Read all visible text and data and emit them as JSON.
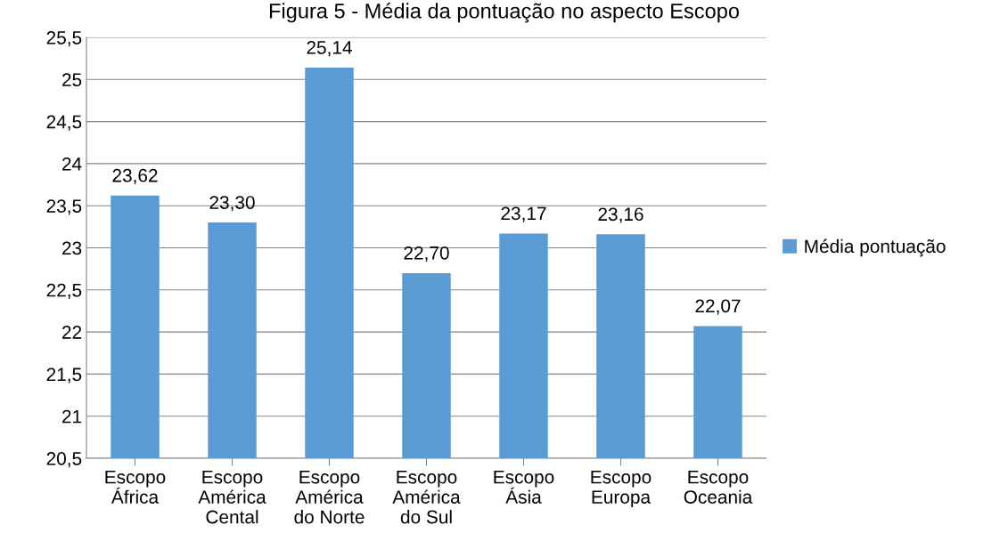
{
  "chart_data": {
    "type": "bar",
    "title": "Figura 5 - Média da pontuação no aspecto Escopo",
    "categories": [
      "Escopo\nÁfrica",
      "Escopo\nAmérica\nCental",
      "Escopo\nAmérica\ndo Norte",
      "Escopo\nAmérica\ndo Sul",
      "Escopo\nÁsia",
      "Escopo\nEuropa",
      "Escopo\nOceania"
    ],
    "series": [
      {
        "name": "Média pontuação",
        "color": "#5b9bd5",
        "values": [
          23.62,
          23.3,
          25.14,
          22.7,
          23.17,
          23.16,
          22.07
        ],
        "value_labels": [
          "23,62",
          "23,30",
          "25,14",
          "22,70",
          "23,17",
          "23,16",
          "22,07"
        ]
      }
    ],
    "ylim": [
      20.5,
      25.5
    ],
    "yticks": [
      {
        "value": 20.5,
        "label": "20,5"
      },
      {
        "value": 21,
        "label": "21"
      },
      {
        "value": 21.5,
        "label": "21,5"
      },
      {
        "value": 22,
        "label": "22"
      },
      {
        "value": 22.5,
        "label": "22,5"
      },
      {
        "value": 23,
        "label": "23"
      },
      {
        "value": 23.5,
        "label": "23,5"
      },
      {
        "value": 24,
        "label": "24"
      },
      {
        "value": 24.5,
        "label": "24,5"
      },
      {
        "value": 25,
        "label": "25"
      },
      {
        "value": 25.5,
        "label": "25,5"
      }
    ],
    "grid": "y",
    "legend": "right"
  }
}
